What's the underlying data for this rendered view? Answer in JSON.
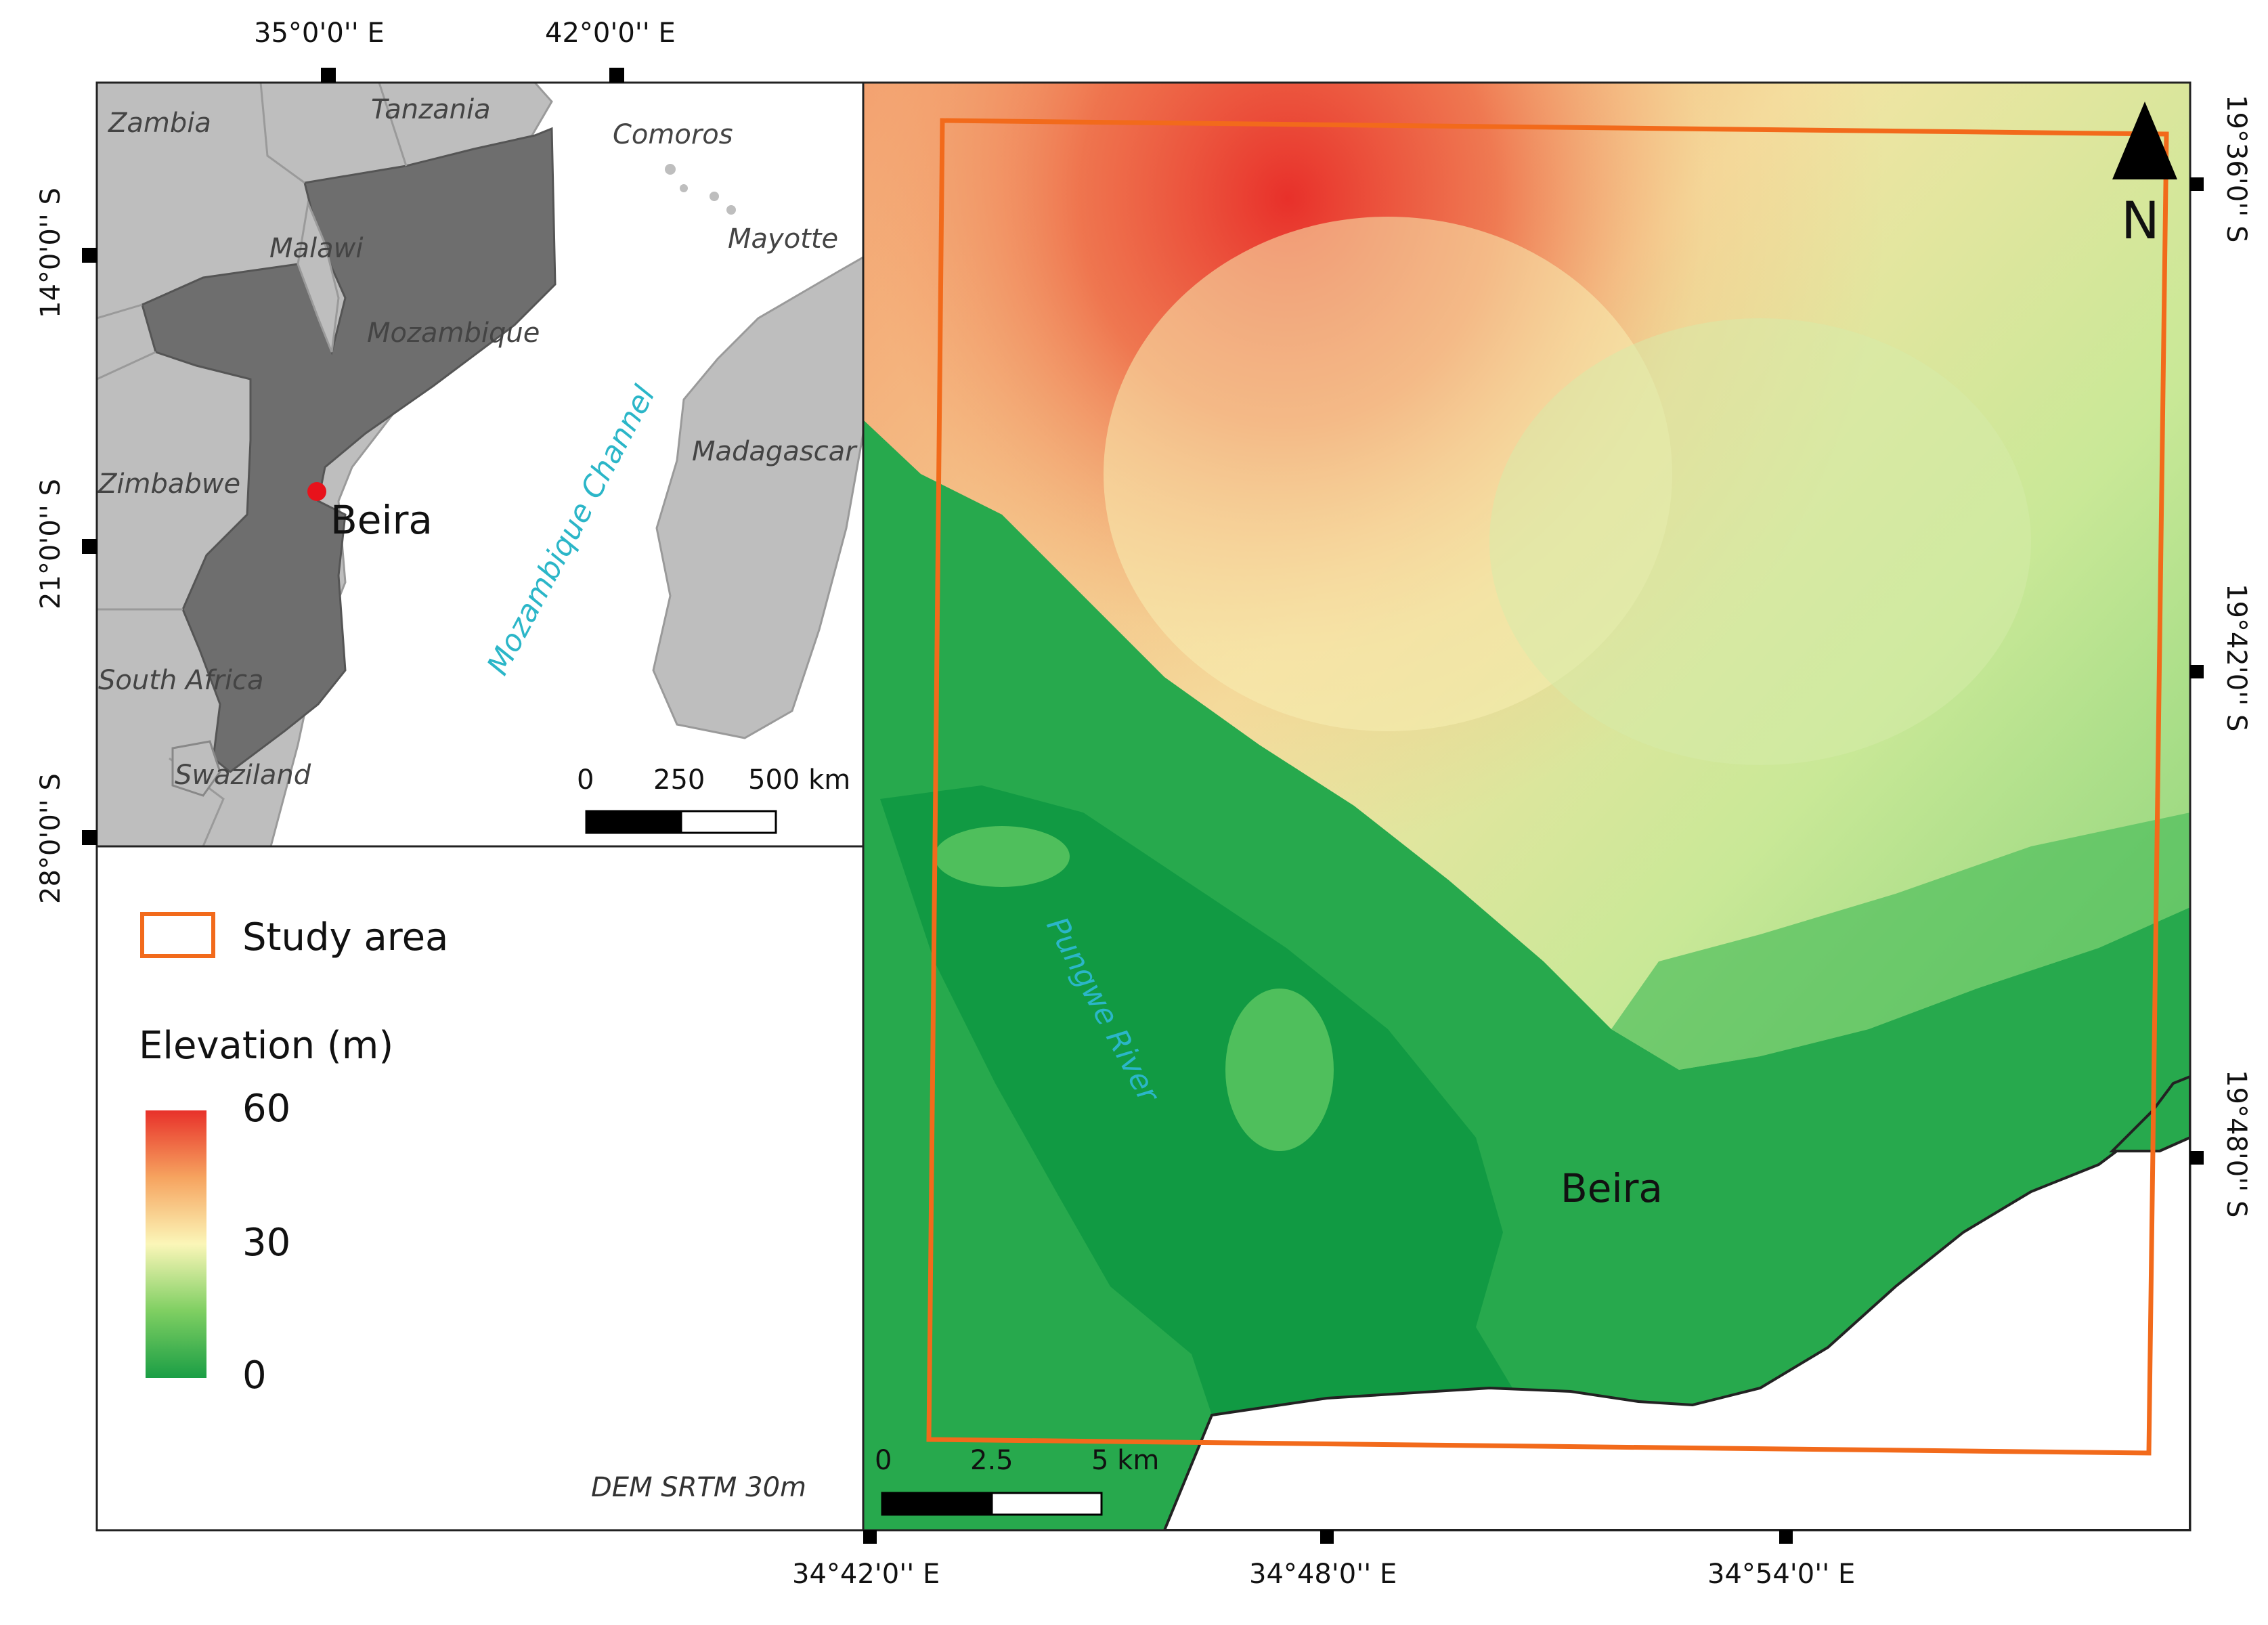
{
  "inset": {
    "top_coords": [
      "35°0'0'' E",
      "42°0'0'' E"
    ],
    "left_coords": [
      "14°0'0'' S",
      "21°0'0'' S",
      "28°0'0'' S"
    ],
    "countries": [
      "Zambia",
      "Tanzania",
      "Comoros",
      "Malawi",
      "Mayotte",
      "Mozambique",
      "Zimbabwe",
      "Madagascar",
      "South Africa",
      "Swaziland"
    ],
    "sea_label": "Mozambique Channel",
    "city_label": "Beira",
    "scalebar": {
      "labels": [
        "0",
        "250",
        "500 km"
      ]
    },
    "colors": {
      "mozambique": "#6e6e6e",
      "neighbors": "#bebebe",
      "sea": "#ffffff",
      "city_point": "#e8121b"
    }
  },
  "legend": {
    "study_area_label": "Study area",
    "elevation_title": "Elevation (m)",
    "ramp_labels": [
      "60",
      "30",
      "0"
    ],
    "ramp_values": [
      60,
      30,
      0
    ],
    "ramp_colors": [
      "#e8312a",
      "#f6a35f",
      "#fbf6b8",
      "#7fcf62",
      "#1a9e45"
    ],
    "source": "DEM SRTM 30m"
  },
  "main_map": {
    "bottom_coords": [
      "34°42'0'' E",
      "34°48'0'' E",
      "34°54'0'' E"
    ],
    "right_coords": [
      "19°36'0'' S",
      "19°42'0'' S",
      "19°48'0'' S"
    ],
    "river_label": "Pungwe River",
    "city_label": "Beira",
    "north_label": "N",
    "scalebar": {
      "labels": [
        "0",
        "2.5",
        "5 km"
      ]
    },
    "study_area_color": "#f26a1b"
  }
}
